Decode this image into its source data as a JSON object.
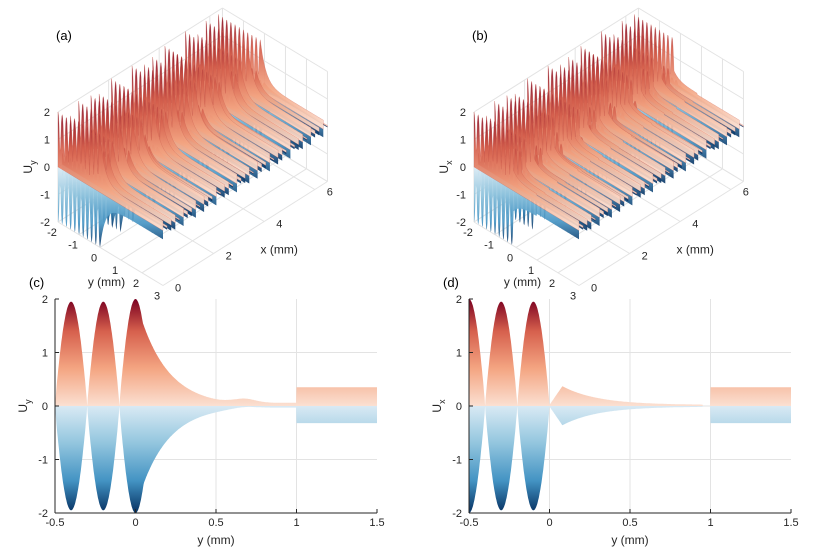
{
  "chart_data": [
    {
      "panel": "(a)",
      "type": "surface3d",
      "zlabel": "U",
      "zlabel_sub": "y",
      "xlabel": "y (mm)",
      "ylabel": "x (mm)",
      "y_ticks": [
        "-2",
        "-1",
        "0",
        "1",
        "2",
        "3"
      ],
      "x_ticks": [
        "0",
        "2",
        "4",
        "6"
      ],
      "z_ticks": [
        "-2",
        "-1",
        "0",
        "1",
        "2"
      ],
      "ylim": [
        -2,
        3
      ],
      "xlim": [
        0,
        6.5
      ],
      "zlim": [
        -2,
        2
      ],
      "colormap": [
        "#67001f",
        "#b2182b",
        "#d6604d",
        "#f4a582",
        "#fddbc7",
        "#d1e5f0",
        "#92c5de",
        "#4393c3",
        "#2166ac",
        "#053061"
      ]
    },
    {
      "panel": "(b)",
      "type": "surface3d",
      "zlabel": "U",
      "zlabel_sub": "x",
      "xlabel": "y (mm)",
      "ylabel": "x (mm)",
      "y_ticks": [
        "-2",
        "-1",
        "0",
        "1",
        "2",
        "3"
      ],
      "x_ticks": [
        "0",
        "2",
        "4",
        "6"
      ],
      "z_ticks": [
        "-2",
        "-1",
        "0",
        "1",
        "2"
      ],
      "ylim": [
        -2,
        3
      ],
      "xlim": [
        0,
        6.5
      ],
      "zlim": [
        -2,
        2
      ]
    },
    {
      "panel": "(c)",
      "type": "area",
      "xlabel": "y (mm)",
      "ylabel": "U",
      "ylabel_sub": "y",
      "xlim": [
        -0.5,
        1.5
      ],
      "ylim": [
        -2,
        2
      ],
      "x_ticks": [
        "-0.5",
        "0",
        "0.5",
        "1",
        "1.5"
      ],
      "y_ticks": [
        "-2",
        "-1",
        "0",
        "1",
        "2"
      ],
      "envelope": {
        "lobes": [
          {
            "center": -0.4,
            "width": 0.1,
            "peak": 1.95
          },
          {
            "center": -0.2,
            "width": 0.1,
            "peak": 1.95
          },
          {
            "center": 0.0,
            "width": 0.1,
            "peak": 2.0
          }
        ],
        "tail_decay": 0.18,
        "tail_end": 0.8,
        "plateau_start": 1.0,
        "plateau_upper": 0.35,
        "plateau_lower": -0.32
      }
    },
    {
      "panel": "(d)",
      "type": "area",
      "xlabel": "y (mm)",
      "ylabel": "U",
      "ylabel_sub": "x",
      "xlim": [
        -0.5,
        1.5
      ],
      "ylim": [
        -2,
        2
      ],
      "x_ticks": [
        "-0.5",
        "0",
        "0.5",
        "1",
        "1.5"
      ],
      "y_ticks": [
        "-2",
        "-1",
        "0",
        "1",
        "2"
      ],
      "envelope": {
        "lobes": [
          {
            "center": -0.5,
            "width": 0.1,
            "peak": 2.0
          },
          {
            "center": -0.3,
            "width": 0.1,
            "peak": 1.95
          },
          {
            "center": -0.1,
            "width": 0.1,
            "peak": 1.95
          }
        ],
        "bump": {
          "start": 0.0,
          "end": 0.95,
          "peak_at": 0.08,
          "upper": 0.35,
          "lower": -0.35
        },
        "plateau_start": 1.0,
        "plateau_upper": 0.35,
        "plateau_lower": -0.32
      }
    }
  ]
}
